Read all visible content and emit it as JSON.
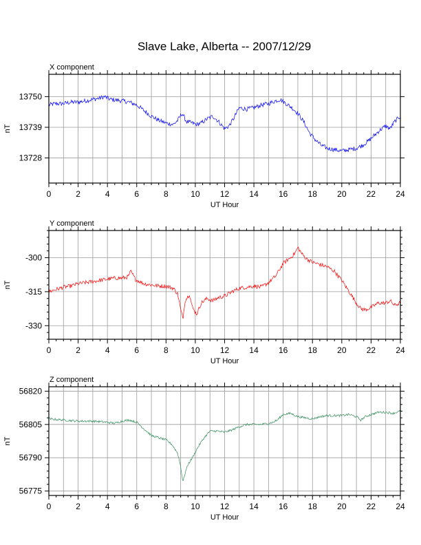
{
  "title": "Slave Lake, Alberta -- 2007/12/29",
  "chart_data": [
    {
      "type": "line",
      "panel_label": "X component",
      "xlabel": "UT Hour",
      "ylabel": "nT",
      "xlim": [
        0,
        24
      ],
      "ylim": [
        13719,
        13758
      ],
      "xticks": [
        0,
        2,
        4,
        6,
        8,
        10,
        12,
        14,
        16,
        18,
        20,
        22,
        24
      ],
      "yticks": [
        13728,
        13739,
        13750
      ],
      "grid": true,
      "color": "#0000ff",
      "noise": 0.8,
      "x": [
        0,
        0.5,
        1,
        1.5,
        2,
        2.5,
        3,
        3.5,
        3.8,
        4.2,
        5,
        5.5,
        6,
        6.5,
        7,
        7.5,
        8,
        8.5,
        8.8,
        9.1,
        9.4,
        9.8,
        10.1,
        10.4,
        10.8,
        11.2,
        11.6,
        12,
        12.3,
        12.6,
        13,
        13.5,
        14,
        14.5,
        15,
        15.5,
        15.8,
        16.2,
        16.6,
        17,
        17.4,
        17.8,
        18.2,
        18.6,
        19,
        19.5,
        20,
        20.5,
        21,
        21.4,
        21.8,
        22.2,
        22.6,
        23,
        23.3,
        23.6,
        24
      ],
      "y": [
        13747,
        13747.5,
        13747.5,
        13748,
        13748,
        13748.5,
        13749,
        13749.5,
        13750,
        13749,
        13748.5,
        13748,
        13747,
        13745,
        13743,
        13741.5,
        13740.5,
        13740,
        13741.5,
        13744,
        13741,
        13740.5,
        13740,
        13740.5,
        13742,
        13743,
        13741,
        13738.5,
        13739.5,
        13742,
        13746,
        13745.5,
        13746,
        13747,
        13747.5,
        13748.5,
        13749,
        13747.5,
        13746,
        13744,
        13741,
        13737,
        13734.5,
        13732.5,
        13731.5,
        13731,
        13730.5,
        13731,
        13731.5,
        13732.5,
        13734,
        13736,
        13738,
        13739.5,
        13738.5,
        13741,
        13743
      ]
    },
    {
      "type": "line",
      "panel_label": "Y component",
      "xlabel": "UT Hour",
      "ylabel": "nT",
      "xlim": [
        0,
        24
      ],
      "ylim": [
        -336,
        -288
      ],
      "xticks": [
        0,
        2,
        4,
        6,
        8,
        10,
        12,
        14,
        16,
        18,
        20,
        22,
        24
      ],
      "yticks": [
        -330,
        -315,
        -300
      ],
      "grid": true,
      "color": "#ff0000",
      "noise": 0.9,
      "x": [
        0,
        0.5,
        1,
        1.5,
        2,
        2.5,
        3,
        3.5,
        4,
        4.5,
        5,
        5.4,
        5.6,
        5.9,
        6.5,
        7,
        7.5,
        8,
        8.5,
        8.8,
        9,
        9.15,
        9.3,
        9.6,
        9.8,
        10.1,
        10.4,
        10.8,
        11.2,
        11.6,
        12,
        12.5,
        13,
        13.5,
        14,
        14.5,
        15,
        15.5,
        16,
        16.5,
        16.8,
        17,
        17.3,
        17.6,
        18,
        18.5,
        19,
        19.5,
        20,
        20.5,
        21,
        21.3,
        21.6,
        22,
        22.5,
        23,
        23.3,
        23.6,
        24
      ],
      "y": [
        -315,
        -314,
        -313,
        -312.5,
        -311.5,
        -311,
        -310.5,
        -310,
        -309.5,
        -309,
        -309,
        -308.5,
        -306,
        -309.5,
        -311.5,
        -312,
        -312.5,
        -312.5,
        -313.5,
        -316,
        -323,
        -327,
        -319,
        -316,
        -322,
        -325,
        -320,
        -318,
        -319,
        -317.5,
        -317,
        -315,
        -313.5,
        -313,
        -312.5,
        -313,
        -311,
        -308,
        -302.5,
        -300,
        -298,
        -295.5,
        -298.5,
        -300.5,
        -302,
        -303,
        -304,
        -306,
        -310,
        -315,
        -320,
        -322.5,
        -323,
        -322,
        -320,
        -320,
        -319,
        -321,
        -320
      ]
    },
    {
      "type": "line",
      "panel_label": "Z component",
      "xlabel": "UT Hour",
      "ylabel": "nT",
      "xlim": [
        0,
        24
      ],
      "ylim": [
        56773,
        56822
      ],
      "xticks": [
        0,
        2,
        4,
        6,
        8,
        10,
        12,
        14,
        16,
        18,
        20,
        22,
        24
      ],
      "yticks": [
        56775,
        56790,
        56805,
        56820
      ],
      "grid": true,
      "color": "#2e8b57",
      "noise": 0.5,
      "x": [
        0,
        1,
        2,
        3,
        4,
        4.5,
        5,
        5.5,
        6,
        6.5,
        7,
        7.5,
        8,
        8.4,
        8.8,
        9,
        9.15,
        9.3,
        9.5,
        9.8,
        10.2,
        10.6,
        11,
        11.5,
        12,
        12.5,
        13,
        13.5,
        14,
        14.5,
        15,
        15.3,
        15.6,
        16,
        16.5,
        17,
        17.5,
        18,
        18.5,
        19,
        19.5,
        20,
        20.5,
        21,
        21.3,
        21.6,
        22,
        22.5,
        23,
        23.5,
        24
      ],
      "y": [
        56807.5,
        56807,
        56806.5,
        56806.5,
        56806,
        56805.5,
        56806.5,
        56807,
        56806,
        56803,
        56800,
        56799,
        56798,
        56796,
        56792,
        56786,
        56779,
        56783,
        56787,
        56790,
        56795,
        56799,
        56802,
        56802,
        56801.5,
        56802.5,
        56804,
        56805,
        56805,
        56805,
        56805.5,
        56806,
        56807,
        56809.5,
        56810,
        56808.5,
        56808,
        56807.5,
        56808.5,
        56809,
        56809,
        56809,
        56809.5,
        56808.5,
        56807,
        56808.5,
        56809.5,
        56810.5,
        56810.5,
        56810,
        56811
      ]
    }
  ]
}
